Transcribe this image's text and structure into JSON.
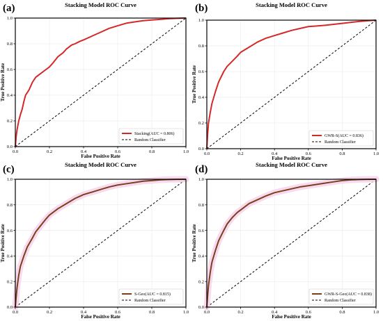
{
  "chart_data": [
    {
      "type": "line",
      "panel_label": "(a)",
      "title": "Stacking Model ROC Curve",
      "xlabel": "False Positive Rate",
      "ylabel": "True Positive Rate",
      "xlim": [
        0,
        1
      ],
      "ylim": [
        0,
        1
      ],
      "xticks": [
        "0.0",
        "0.2",
        "0.4",
        "0.6",
        "0.8",
        "1.0"
      ],
      "yticks": [
        "0.0",
        "0.2",
        "0.4",
        "0.6",
        "0.8",
        "1.0"
      ],
      "legend_position": "lower-right",
      "series": [
        {
          "name": "Stacking(AUC = 0.806)",
          "color": "#d62728",
          "style": "solid",
          "x": [
            0,
            0.005,
            0.01,
            0.02,
            0.03,
            0.04,
            0.05,
            0.06,
            0.08,
            0.1,
            0.12,
            0.15,
            0.18,
            0.2,
            0.22,
            0.25,
            0.28,
            0.3,
            0.33,
            0.35,
            0.38,
            0.4,
            0.45,
            0.5,
            0.55,
            0.6,
            0.65,
            0.7,
            0.75,
            0.8,
            0.85,
            0.9,
            0.95,
            1.0
          ],
          "y": [
            0,
            0.08,
            0.13,
            0.2,
            0.25,
            0.29,
            0.35,
            0.4,
            0.44,
            0.5,
            0.54,
            0.57,
            0.6,
            0.62,
            0.65,
            0.7,
            0.73,
            0.76,
            0.79,
            0.8,
            0.82,
            0.83,
            0.86,
            0.89,
            0.92,
            0.94,
            0.96,
            0.97,
            0.98,
            0.985,
            0.99,
            0.995,
            0.998,
            1.0
          ]
        },
        {
          "name": "Random Classifier",
          "color": "#000000",
          "style": "dashed",
          "x": [
            0,
            1
          ],
          "y": [
            0,
            1
          ]
        }
      ]
    },
    {
      "type": "line",
      "panel_label": "(b)",
      "title": "Stacking Model ROC Curve",
      "xlabel": "False Positive Rate",
      "ylabel": "True Positive Rate",
      "xlim": [
        0,
        1
      ],
      "ylim": [
        0,
        1
      ],
      "xticks": [
        "0.0",
        "0.2",
        "0.4",
        "0.6",
        "0.8",
        "1.0"
      ],
      "yticks": [
        "0.0",
        "0.2",
        "0.4",
        "0.6",
        "0.8",
        "1.0"
      ],
      "legend_position": "lower-right",
      "series": [
        {
          "name": "GWR-S(AUC = 0.836)",
          "color": "#d62728",
          "style": "solid",
          "x": [
            0,
            0.005,
            0.01,
            0.02,
            0.03,
            0.05,
            0.07,
            0.1,
            0.12,
            0.15,
            0.18,
            0.2,
            0.25,
            0.3,
            0.35,
            0.4,
            0.45,
            0.5,
            0.55,
            0.6,
            0.65,
            0.7,
            0.8,
            0.9,
            0.95,
            1.0
          ],
          "y": [
            0,
            0.12,
            0.2,
            0.28,
            0.35,
            0.44,
            0.52,
            0.6,
            0.64,
            0.68,
            0.72,
            0.75,
            0.79,
            0.83,
            0.86,
            0.88,
            0.9,
            0.92,
            0.935,
            0.95,
            0.955,
            0.96,
            0.975,
            0.99,
            0.995,
            1.0
          ]
        },
        {
          "name": "Random Classifier",
          "color": "#000000",
          "style": "dashed",
          "x": [
            0,
            1
          ],
          "y": [
            0,
            1
          ]
        }
      ]
    },
    {
      "type": "line",
      "panel_label": "(c)",
      "title": "Stacking Model ROC Curve",
      "xlabel": "False Positive Rate",
      "ylabel": "True Positive Rate",
      "xlim": [
        0,
        1
      ],
      "ylim": [
        0,
        1
      ],
      "xticks": [
        "0.0",
        "0.2",
        "0.4",
        "0.6",
        "0.8",
        "1.0"
      ],
      "yticks": [
        "0.0",
        "0.2",
        "0.4",
        "0.6",
        "0.8",
        "1.0"
      ],
      "legend_position": "lower-right",
      "series": [
        {
          "name": "S-Geo(AUC = 0.815)",
          "color": "#7b3f1f",
          "style": "solid",
          "x": [
            0,
            0.005,
            0.01,
            0.02,
            0.03,
            0.05,
            0.07,
            0.1,
            0.12,
            0.15,
            0.18,
            0.2,
            0.25,
            0.3,
            0.35,
            0.4,
            0.45,
            0.5,
            0.55,
            0.6,
            0.65,
            0.7,
            0.75,
            0.8,
            0.85,
            0.9,
            0.95,
            1.0
          ],
          "y": [
            0,
            0.08,
            0.15,
            0.25,
            0.32,
            0.4,
            0.47,
            0.54,
            0.59,
            0.64,
            0.69,
            0.72,
            0.77,
            0.81,
            0.85,
            0.88,
            0.9,
            0.92,
            0.94,
            0.955,
            0.965,
            0.975,
            0.985,
            0.99,
            0.995,
            0.998,
            0.999,
            1.0
          ]
        },
        {
          "name": "Random Classifier",
          "color": "#000000",
          "style": "dashed",
          "x": [
            0,
            1
          ],
          "y": [
            0,
            1
          ]
        }
      ]
    },
    {
      "type": "line",
      "panel_label": "(d)",
      "title": "Stacking Model ROC Curve",
      "xlabel": "False Positive Rate",
      "ylabel": "True Positive Rate",
      "xlim": [
        0,
        1
      ],
      "ylim": [
        0,
        1
      ],
      "xticks": [
        "0.0",
        "0.2",
        "0.4",
        "0.6",
        "0.8",
        "1.0"
      ],
      "yticks": [
        "0.0",
        "0.2",
        "0.4",
        "0.6",
        "0.8",
        "1.0"
      ],
      "legend_position": "lower-right",
      "series": [
        {
          "name": "GWR-S-Geo(AUC = 0.838)",
          "color": "#7b3f1f",
          "style": "solid",
          "x": [
            0,
            0.005,
            0.01,
            0.02,
            0.03,
            0.05,
            0.07,
            0.1,
            0.12,
            0.15,
            0.18,
            0.2,
            0.25,
            0.3,
            0.35,
            0.4,
            0.45,
            0.5,
            0.55,
            0.6,
            0.65,
            0.7,
            0.75,
            0.8,
            0.85,
            0.9,
            0.95,
            1.0
          ],
          "y": [
            0,
            0.09,
            0.17,
            0.27,
            0.35,
            0.44,
            0.52,
            0.6,
            0.65,
            0.7,
            0.74,
            0.76,
            0.81,
            0.84,
            0.87,
            0.895,
            0.91,
            0.925,
            0.94,
            0.95,
            0.96,
            0.97,
            0.98,
            0.99,
            0.995,
            0.998,
            0.999,
            1.0
          ]
        },
        {
          "name": "Random Classifier",
          "color": "#000000",
          "style": "dashed",
          "x": [
            0,
            1
          ],
          "y": [
            0,
            1
          ]
        }
      ]
    }
  ]
}
